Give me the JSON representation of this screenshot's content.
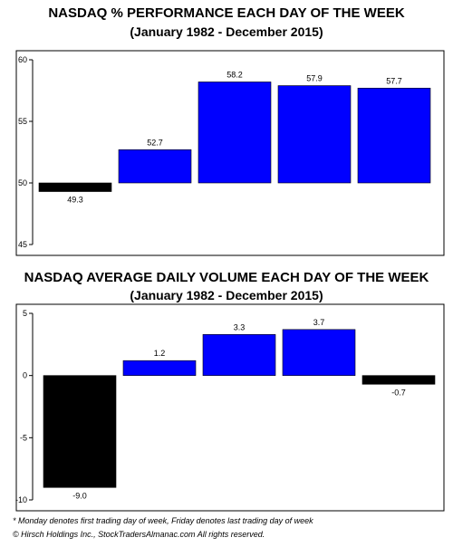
{
  "chart_data": [
    {
      "type": "bar",
      "title": "NASDAQ % PERFORMANCE EACH DAY OF THE WEEK",
      "subtitle": "(January 1982 - December 2015)",
      "values": [
        49.3,
        52.7,
        58.2,
        57.9,
        57.7
      ],
      "value_labels": [
        "49.3",
        "52.7",
        "58.2",
        "57.9",
        "57.7"
      ],
      "baseline": 50,
      "ylim": [
        45,
        60
      ],
      "yticks": [
        45,
        50,
        55,
        60
      ],
      "colors": [
        "#000000",
        "#0000ff",
        "#0000ff",
        "#0000ff",
        "#0000ff"
      ]
    },
    {
      "type": "bar",
      "title": "NASDAQ AVERAGE DAILY VOLUME EACH DAY OF THE WEEK",
      "subtitle": "(January 1982 - December 2015)",
      "values": [
        -9.0,
        1.2,
        3.3,
        3.7,
        -0.7
      ],
      "value_labels": [
        "-9.0",
        "1.2",
        "3.3",
        "3.7",
        "-0.7"
      ],
      "baseline": 0,
      "ylim": [
        -10,
        5
      ],
      "yticks": [
        -10,
        -5,
        0,
        5
      ],
      "colors": [
        "#000000",
        "#0000ff",
        "#0000ff",
        "#0000ff",
        "#000000"
      ]
    }
  ],
  "footnotes": {
    "note": "* Monday denotes first trading day of week, Friday denotes last trading day of week",
    "copyright": "© Hirsch Holdings Inc., StockTradersAlmanac.com All rights reserved."
  }
}
